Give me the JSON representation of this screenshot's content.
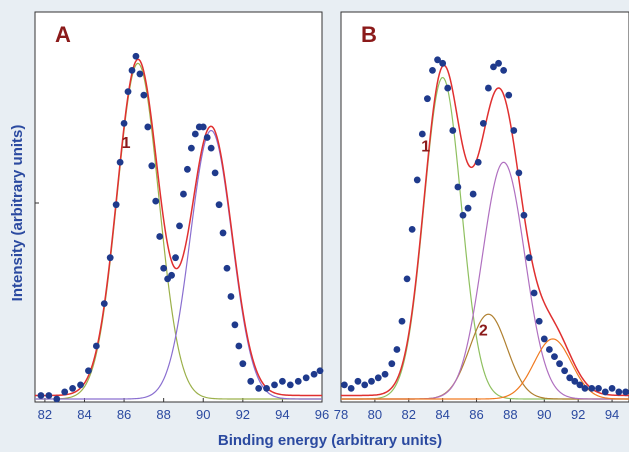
{
  "chart_data": {
    "type": "scatter",
    "shared_xlabel": "Binding energy (arbitrary units)",
    "shared_ylabel": "Intensity (arbitrary units)",
    "colors": {
      "background": "#e8eef3",
      "points": "#1f3a8c",
      "fit": "#e03030",
      "label": "#8b1a1a",
      "axis_text": "#2b4aa0"
    },
    "panels": [
      {
        "panel_label": "A",
        "xlim": [
          81.5,
          96
        ],
        "ylim": [
          0,
          1.05
        ],
        "xticks": [
          82,
          84,
          86,
          88,
          90,
          92,
          94,
          96
        ],
        "scatter": {
          "x": [
            81.8,
            82.2,
            82.6,
            83.0,
            83.4,
            83.8,
            84.2,
            84.6,
            85.0,
            85.3,
            85.6,
            85.8,
            86.0,
            86.2,
            86.4,
            86.6,
            86.8,
            87.0,
            87.2,
            87.4,
            87.6,
            87.8,
            88.0,
            88.2,
            88.4,
            88.6,
            88.8,
            89.0,
            89.2,
            89.4,
            89.6,
            89.8,
            90.0,
            90.2,
            90.4,
            90.6,
            90.8,
            91.0,
            91.2,
            91.4,
            91.6,
            91.8,
            92.0,
            92.4,
            92.8,
            93.2,
            93.6,
            94.0,
            94.4,
            94.8,
            95.2,
            95.6,
            95.9
          ],
          "y": [
            0.01,
            0.01,
            0.0,
            0.02,
            0.03,
            0.04,
            0.08,
            0.15,
            0.27,
            0.4,
            0.55,
            0.67,
            0.78,
            0.87,
            0.93,
            0.97,
            0.92,
            0.86,
            0.77,
            0.66,
            0.56,
            0.46,
            0.37,
            0.34,
            0.35,
            0.4,
            0.49,
            0.58,
            0.65,
            0.71,
            0.75,
            0.77,
            0.77,
            0.74,
            0.71,
            0.64,
            0.55,
            0.47,
            0.37,
            0.29,
            0.21,
            0.15,
            0.1,
            0.05,
            0.03,
            0.03,
            0.04,
            0.05,
            0.04,
            0.05,
            0.06,
            0.07,
            0.08
          ]
        },
        "components": [
          {
            "kind": "gaussian",
            "center": 86.7,
            "amplitude": 0.95,
            "sigma": 1.05,
            "color": "#9bb04a"
          },
          {
            "kind": "gaussian",
            "center": 90.4,
            "amplitude": 0.76,
            "sigma": 1.05,
            "color": "#8a6fd0"
          }
        ],
        "annotations": [
          {
            "text": "1",
            "x": 86.1,
            "y": 0.71
          }
        ]
      },
      {
        "panel_label": "B",
        "xlim": [
          78,
          95
        ],
        "ylim": [
          0,
          1.05
        ],
        "xticks": [
          78,
          80,
          82,
          84,
          86,
          88,
          90,
          92,
          94
        ],
        "scatter": {
          "x": [
            78.2,
            78.6,
            79.0,
            79.4,
            79.8,
            80.2,
            80.6,
            81.0,
            81.3,
            81.6,
            81.9,
            82.2,
            82.5,
            82.8,
            83.1,
            83.4,
            83.7,
            84.0,
            84.3,
            84.6,
            84.9,
            85.2,
            85.5,
            85.8,
            86.1,
            86.4,
            86.7,
            87.0,
            87.3,
            87.6,
            87.9,
            88.2,
            88.5,
            88.8,
            89.1,
            89.4,
            89.7,
            90.0,
            90.3,
            90.6,
            90.9,
            91.2,
            91.5,
            91.8,
            92.1,
            92.4,
            92.8,
            93.2,
            93.6,
            94.0,
            94.4,
            94.8
          ],
          "y": [
            0.04,
            0.03,
            0.05,
            0.04,
            0.05,
            0.06,
            0.07,
            0.1,
            0.14,
            0.22,
            0.34,
            0.48,
            0.62,
            0.75,
            0.85,
            0.93,
            0.96,
            0.95,
            0.88,
            0.76,
            0.6,
            0.52,
            0.54,
            0.58,
            0.67,
            0.78,
            0.88,
            0.94,
            0.95,
            0.93,
            0.86,
            0.76,
            0.64,
            0.52,
            0.4,
            0.3,
            0.22,
            0.17,
            0.14,
            0.12,
            0.1,
            0.08,
            0.06,
            0.05,
            0.04,
            0.03,
            0.03,
            0.03,
            0.02,
            0.03,
            0.02,
            0.02
          ]
        },
        "components": [
          {
            "kind": "gaussian",
            "center": 84.0,
            "amplitude": 0.91,
            "sigma": 1.1,
            "color": "#8fc060"
          },
          {
            "kind": "gaussian",
            "center": 86.7,
            "amplitude": 0.24,
            "sigma": 1.1,
            "color": "#b08030"
          },
          {
            "kind": "gaussian",
            "center": 87.6,
            "amplitude": 0.67,
            "sigma": 1.25,
            "color": "#b070c0"
          },
          {
            "kind": "gaussian",
            "center": 90.5,
            "amplitude": 0.17,
            "sigma": 1.1,
            "color": "#f07a20"
          }
        ],
        "annotations": [
          {
            "text": "1",
            "x": 83.0,
            "y": 0.7
          },
          {
            "text": "2",
            "x": 86.4,
            "y": 0.18
          }
        ]
      }
    ]
  }
}
